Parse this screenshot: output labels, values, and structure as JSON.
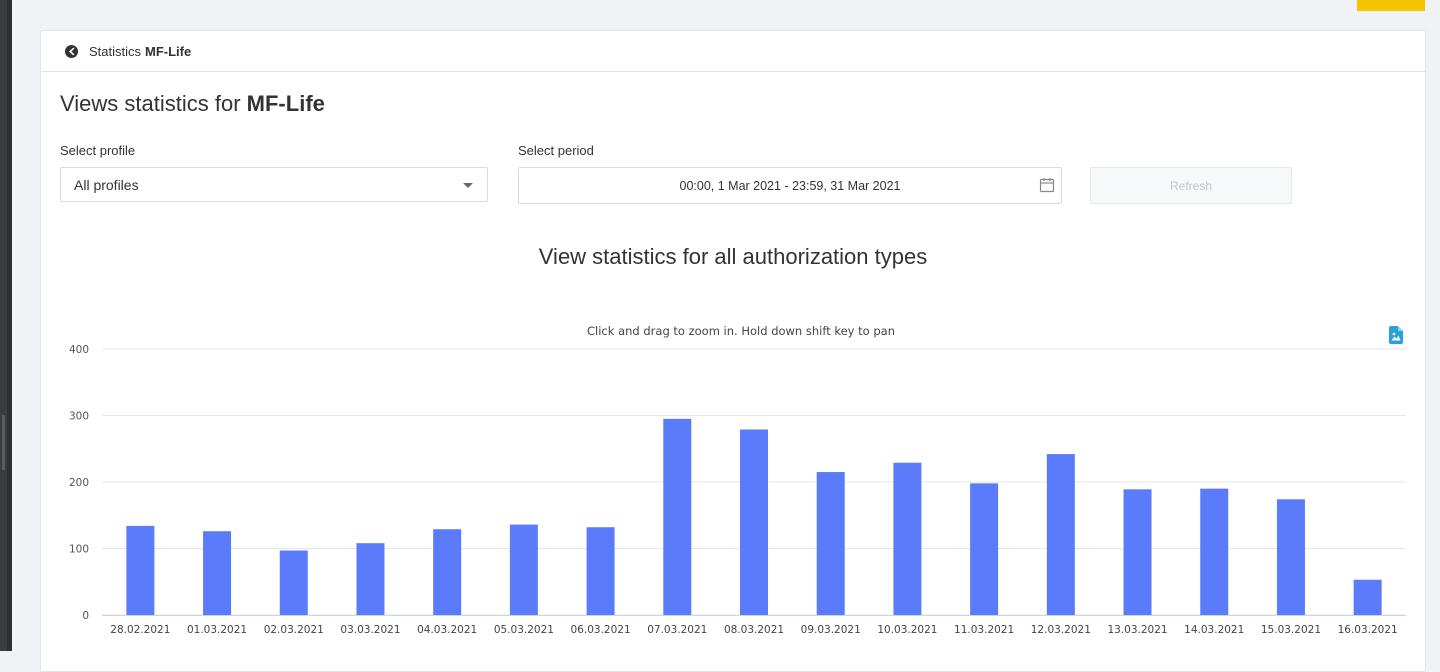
{
  "breadcrumb": {
    "prefix": "Statistics",
    "name": "MF-Life"
  },
  "page_title": {
    "prefix": "Views statistics for",
    "name": "MF-Life"
  },
  "profile": {
    "label": "Select profile",
    "value": "All profiles"
  },
  "period": {
    "label": "Select period",
    "value": "00:00, 1 Mar 2021 - 23:59, 31 Mar 2021"
  },
  "refresh_label": "Refresh",
  "icons": {
    "logo": "brand-logo-icon",
    "calendar": "calendar-icon",
    "export": "image-export-icon",
    "caret": "chevron-down-icon"
  },
  "colors": {
    "bar": "#5b7cfa",
    "accent": "#f5c400",
    "export_icon": "#2aa1d9"
  },
  "chart_data": {
    "type": "bar",
    "title": "View statistics for all authorization types",
    "subtitle": "Click and drag to zoom in. Hold down shift key to pan",
    "xlabel": "",
    "ylabel": "",
    "ylim": [
      0,
      400
    ],
    "yticks": [
      0,
      100,
      200,
      300,
      400
    ],
    "grid": true,
    "categories": [
      "28.02.2021",
      "01.03.2021",
      "02.03.2021",
      "03.03.2021",
      "04.03.2021",
      "05.03.2021",
      "06.03.2021",
      "07.03.2021",
      "08.03.2021",
      "09.03.2021",
      "10.03.2021",
      "11.03.2021",
      "12.03.2021",
      "13.03.2021",
      "14.03.2021",
      "15.03.2021",
      "16.03.2021"
    ],
    "series": [
      {
        "values": [
          134,
          126,
          97,
          108,
          129,
          136,
          132,
          295,
          279,
          215,
          229,
          198,
          242,
          189,
          190,
          174,
          53
        ]
      }
    ]
  }
}
